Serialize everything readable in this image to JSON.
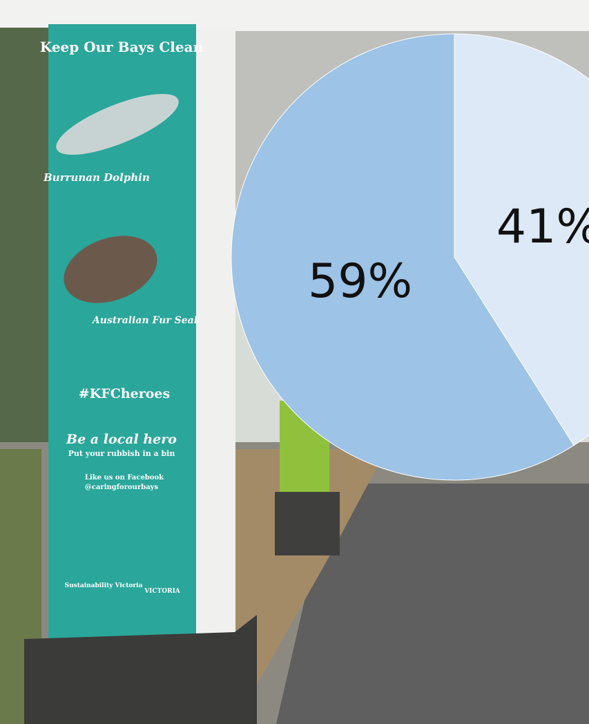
{
  "chart_data": {
    "type": "pie",
    "values": [
      41,
      59
    ],
    "value_labels": [
      "41%",
      "59%"
    ],
    "colors": [
      "#dde9f6",
      "#9dc3e6"
    ]
  },
  "photo_text": {
    "sign_title": "Keep Our Bays Clean",
    "dolphin": "Burrunan Dolphin",
    "seal": "Australian Fur Seal",
    "hashtag": "#KFCheroes",
    "hero": "Be a local hero",
    "rubbish": "Put your rubbish in a bin",
    "facebook": "Like us on Facebook",
    "handle": "@caringforourbays",
    "sustainability": "Sustainability Victoria",
    "victoria": "VICTORIA"
  }
}
